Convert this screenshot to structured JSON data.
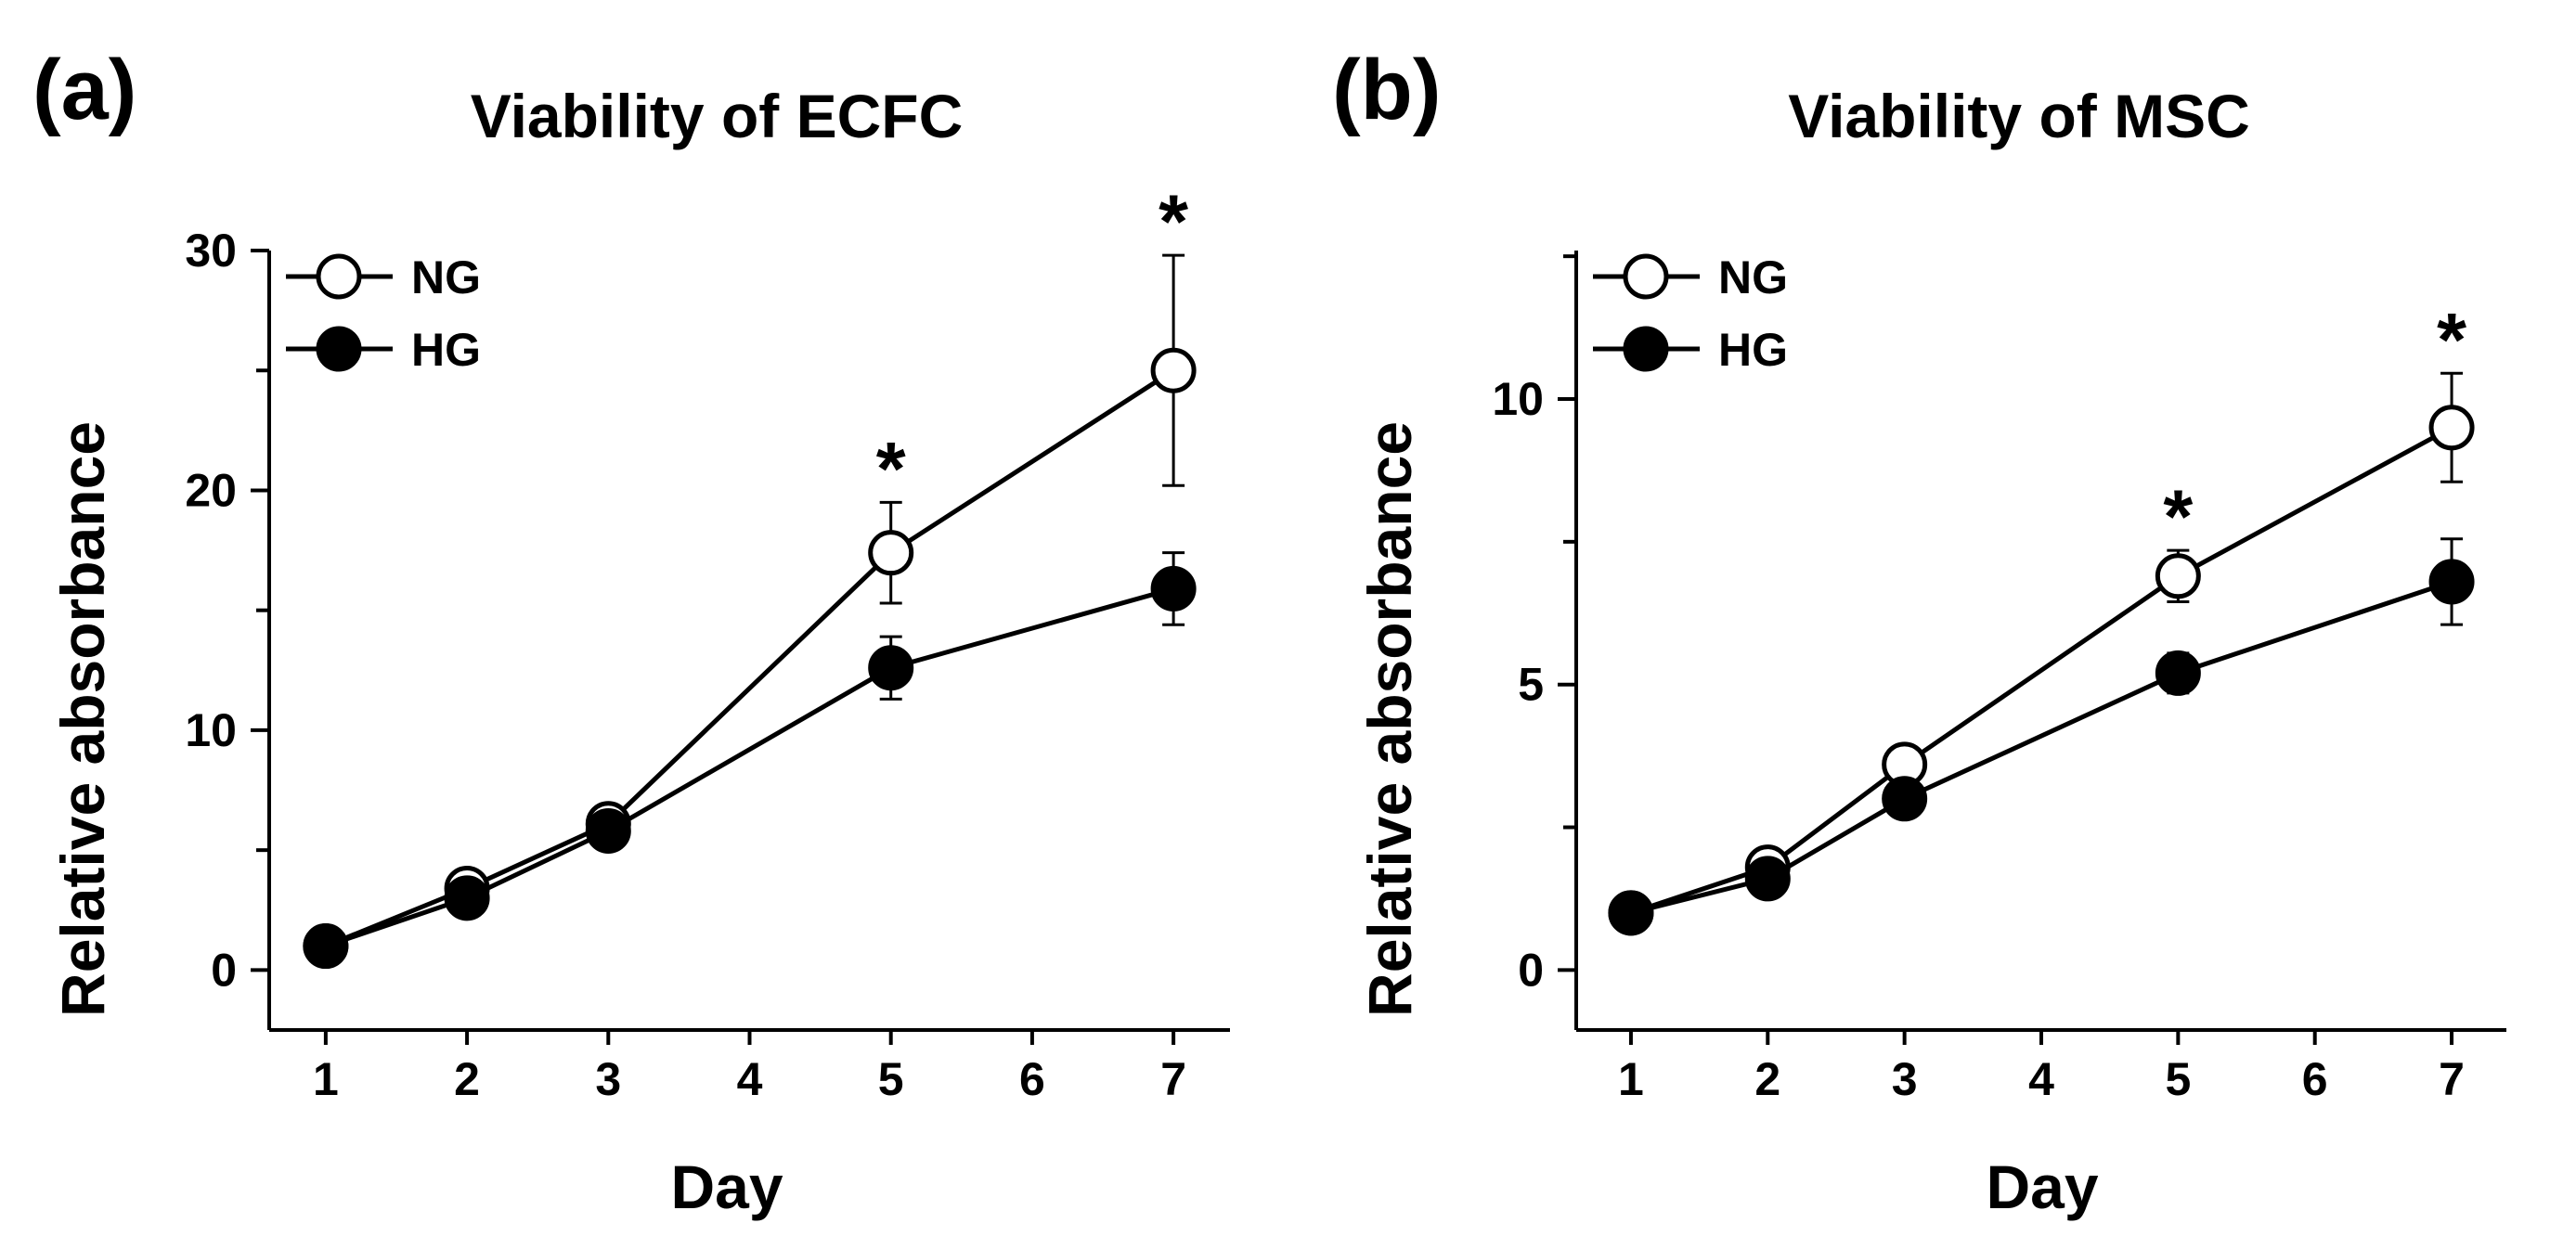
{
  "colors": {
    "ink": "#000000",
    "open_marker_fill": "#ffffff",
    "filled_marker_fill": "#000000"
  },
  "chart_data": [
    {
      "type": "line",
      "panel_label": "(a)",
      "title": "Viability of ECFC",
      "xlabel": "Day",
      "ylabel": "Relative absorbance",
      "xlim": [
        0.6,
        7.4
      ],
      "ylim": [
        -2.5,
        30
      ],
      "x_ticks": [
        1,
        2,
        3,
        4,
        5,
        6,
        7
      ],
      "x_tick_labels": [
        "1",
        "2",
        "3",
        "4",
        "5",
        "6",
        "7"
      ],
      "y_ticks": [
        0,
        5,
        10,
        15,
        20,
        25,
        30
      ],
      "y_tick_labels": [
        "0",
        "",
        "10",
        "",
        "20",
        "",
        "30"
      ],
      "grid": false,
      "legend_position": "top-left",
      "series": [
        {
          "name": "NG",
          "marker": "open-circle",
          "x": [
            1,
            2,
            3,
            5,
            7
          ],
          "y": [
            1.0,
            3.4,
            6.1,
            17.4,
            25.0
          ],
          "err": [
            0.2,
            0.4,
            0.5,
            2.1,
            4.8
          ]
        },
        {
          "name": "HG",
          "marker": "filled-circle",
          "x": [
            1,
            2,
            3,
            5,
            7
          ],
          "y": [
            1.0,
            3.0,
            5.8,
            12.6,
            15.9
          ],
          "err": [
            0.2,
            0.3,
            0.4,
            1.3,
            1.5
          ]
        }
      ],
      "significance": [
        {
          "x": 5,
          "label": "*"
        },
        {
          "x": 7,
          "label": "*"
        }
      ]
    },
    {
      "type": "line",
      "panel_label": "(b)",
      "title": "Viability of MSC",
      "xlabel": "Day",
      "ylabel": "Relative absorbance",
      "xlim": [
        0.6,
        7.4
      ],
      "ylim": [
        -1.05,
        12.6
      ],
      "x_ticks": [
        1,
        2,
        3,
        4,
        5,
        6,
        7
      ],
      "x_tick_labels": [
        "1",
        "2",
        "3",
        "4",
        "5",
        "6",
        "7"
      ],
      "y_ticks": [
        0,
        2.5,
        5,
        7.5,
        10,
        12.5
      ],
      "y_tick_labels": [
        "0",
        "",
        "5",
        "",
        "10",
        ""
      ],
      "grid": false,
      "legend_position": "top-left",
      "series": [
        {
          "name": "NG",
          "marker": "open-circle",
          "x": [
            1,
            2,
            3,
            5,
            7
          ],
          "y": [
            1.0,
            1.8,
            3.6,
            6.9,
            9.5
          ],
          "err": [
            0.1,
            0.15,
            0.15,
            0.45,
            0.95
          ]
        },
        {
          "name": "HG",
          "marker": "filled-circle",
          "x": [
            1,
            2,
            3,
            5,
            7
          ],
          "y": [
            1.0,
            1.6,
            3.0,
            5.2,
            6.8
          ],
          "err": [
            0.1,
            0.12,
            0.15,
            0.35,
            0.75
          ]
        }
      ],
      "significance": [
        {
          "x": 5,
          "label": "*"
        },
        {
          "x": 7,
          "label": "*"
        }
      ]
    }
  ]
}
